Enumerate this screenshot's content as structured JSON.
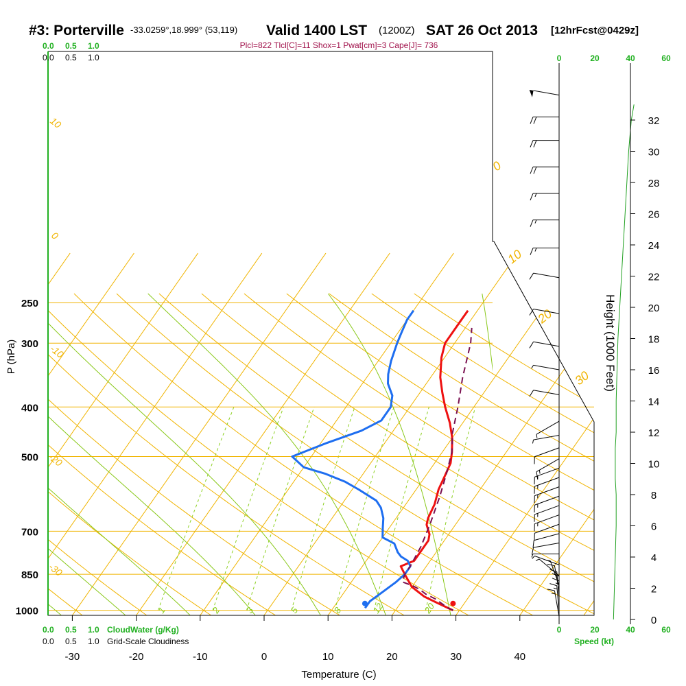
{
  "header": {
    "station": "#3: Porterville",
    "coords": "-33.0259°,18.999° (53,119)",
    "valid": "Valid 1400 LST",
    "utc": "(1200Z)",
    "date": "SAT 26 Oct 2013",
    "forecast": "[12hrFcst@0429z]",
    "indices": "Plcl=822 Tlcl[C]=11 Shox=1 Pwat[cm]=3 Cape[J]= 736"
  },
  "legend": {
    "cloudwater_label": "CloudWater (g/Kg)",
    "cloudiness_label": "Grid-Scale Cloudiness",
    "scale_values": [
      "0.0",
      "0.5",
      "1.0"
    ],
    "speed_label": "Speed (kt)",
    "speed_ticks": [
      "0",
      "20",
      "40",
      "60"
    ]
  },
  "colors": {
    "isotherm": "#f0b400",
    "dry_adiabat": "#88c818",
    "mixing_ratio": "#8cd020",
    "temperature": "#ee1111",
    "dewpoint": "#1e6ef0",
    "parcel": "#7a1050",
    "wind_speed": "#20a020",
    "indices_text": "#a0104a",
    "green_text": "#20b020"
  },
  "chart_data": {
    "type": "line",
    "title": "",
    "xlabel": "Temperature (C)",
    "ylabel": "P (hPa)",
    "y2label": "Height (1000 Feet)",
    "x_ticks": [
      -30,
      -20,
      -10,
      0,
      10,
      20,
      30,
      40
    ],
    "p_ticks": [
      250,
      300,
      400,
      500,
      700,
      850,
      1000
    ],
    "height_ticks": [
      0,
      2,
      4,
      6,
      8,
      10,
      12,
      14,
      16,
      18,
      20,
      22,
      24,
      26,
      28,
      30,
      32
    ],
    "mixing_ratio_labels": [
      "1",
      "2",
      "3",
      "5",
      "8",
      "12",
      "20"
    ],
    "isotherm_labels": [
      "10",
      "0",
      "-10",
      "-20",
      "-30"
    ],
    "dry_adiabat_labels": [
      "0",
      "10",
      "20",
      "30"
    ],
    "series": [
      {
        "key": "temperature",
        "points": [
          [
            29,
            1000
          ],
          [
            28,
            990
          ],
          [
            26,
            970
          ],
          [
            23,
            940
          ],
          [
            20,
            900
          ],
          [
            17.5,
            850
          ],
          [
            16,
            820
          ],
          [
            17.5,
            800
          ],
          [
            17.5,
            760
          ],
          [
            17.5,
            730
          ],
          [
            17,
            710
          ],
          [
            15.5,
            680
          ],
          [
            15,
            660
          ],
          [
            14.5,
            620
          ],
          [
            13.5,
            580
          ],
          [
            13,
            545
          ],
          [
            12.5,
            515
          ],
          [
            11.5,
            490
          ],
          [
            10,
            460
          ],
          [
            8,
            430
          ],
          [
            5.5,
            400
          ],
          [
            3.5,
            375
          ],
          [
            1.5,
            350
          ],
          [
            -0.5,
            320
          ],
          [
            -1.5,
            300
          ],
          [
            -1.5,
            285
          ],
          [
            -1.5,
            270
          ],
          [
            -1.5,
            259
          ]
        ]
      },
      {
        "key": "dewpoint",
        "points": [
          [
            15,
            990
          ],
          [
            15,
            960
          ],
          [
            16,
            920
          ],
          [
            17,
            880
          ],
          [
            17.5,
            850
          ],
          [
            17.5,
            820
          ],
          [
            16.5,
            800
          ],
          [
            15,
            785
          ],
          [
            14,
            770
          ],
          [
            12.5,
            740
          ],
          [
            10,
            720
          ],
          [
            9,
            690
          ],
          [
            8,
            660
          ],
          [
            6.5,
            630
          ],
          [
            5,
            610
          ],
          [
            1,
            580
          ],
          [
            -2,
            560
          ],
          [
            -6,
            540
          ],
          [
            -10,
            525
          ],
          [
            -13,
            500
          ],
          [
            -9,
            470
          ],
          [
            -5,
            445
          ],
          [
            -3,
            425
          ],
          [
            -3,
            400
          ],
          [
            -4,
            380
          ],
          [
            -6,
            360
          ],
          [
            -7,
            345
          ],
          [
            -8,
            325
          ],
          [
            -9,
            300
          ],
          [
            -9.5,
            285
          ],
          [
            -10,
            270
          ],
          [
            -10,
            259
          ]
        ]
      },
      {
        "key": "parcel",
        "points": [
          [
            29,
            1000
          ],
          [
            28,
            990
          ],
          [
            26.5,
            970
          ],
          [
            25,
            950
          ],
          [
            23,
            930
          ],
          [
            21.5,
            910
          ],
          [
            20,
            895
          ],
          [
            18,
            880
          ],
          [
            17.5,
            850
          ],
          [
            17.5,
            822
          ],
          [
            17,
            750
          ],
          [
            16,
            680
          ],
          [
            14.5,
            600
          ],
          [
            13,
            540
          ],
          [
            11.5,
            490
          ],
          [
            9.5,
            450
          ],
          [
            7.5,
            400
          ],
          [
            5,
            350
          ],
          [
            2.5,
            300
          ],
          [
            1,
            280
          ]
        ]
      }
    ],
    "surface_temperature": 29,
    "surface_dewpoint": 15,
    "height_curve": [
      [
        30.5,
        0
      ],
      [
        31,
        2
      ],
      [
        31.5,
        4
      ],
      [
        32,
        6
      ],
      [
        32,
        8
      ],
      [
        31.5,
        9
      ],
      [
        31.5,
        10
      ],
      [
        31.5,
        11
      ],
      [
        32,
        12
      ],
      [
        32,
        14
      ],
      [
        32.5,
        16
      ],
      [
        33,
        18
      ],
      [
        34,
        20
      ],
      [
        35,
        22
      ],
      [
        36,
        24
      ],
      [
        37,
        26
      ],
      [
        38,
        28
      ],
      [
        39,
        30
      ],
      [
        40.5,
        32
      ],
      [
        42,
        33
      ]
    ],
    "wind_barbs": [
      {
        "h": 0.2,
        "dir": 190,
        "spd": 15
      },
      {
        "h": 0.5,
        "dir": 185,
        "spd": 15
      },
      {
        "h": 0.8,
        "dir": 180,
        "spd": 15
      },
      {
        "h": 1.1,
        "dir": 180,
        "spd": 10
      },
      {
        "h": 1.4,
        "dir": 185,
        "spd": 10
      },
      {
        "h": 1.8,
        "dir": 190,
        "spd": 10
      },
      {
        "h": 2.2,
        "dir": 200,
        "spd": 5
      },
      {
        "h": 2.8,
        "dir": 230,
        "spd": 5
      },
      {
        "h": 3.5,
        "dir": 250,
        "spd": 5
      },
      {
        "h": 4.2,
        "dir": 270,
        "spd": 5
      },
      {
        "h": 4.9,
        "dir": 280,
        "spd": 10
      },
      {
        "h": 5.5,
        "dir": 285,
        "spd": 10
      },
      {
        "h": 6.1,
        "dir": 290,
        "spd": 10
      },
      {
        "h": 6.7,
        "dir": 290,
        "spd": 15
      },
      {
        "h": 7.3,
        "dir": 290,
        "spd": 15
      },
      {
        "h": 7.9,
        "dir": 290,
        "spd": 15
      },
      {
        "h": 8.5,
        "dir": 290,
        "spd": 15
      },
      {
        "h": 9.1,
        "dir": 290,
        "spd": 15
      },
      {
        "h": 9.7,
        "dir": 290,
        "spd": 15
      },
      {
        "h": 10.3,
        "dir": 300,
        "spd": 15
      },
      {
        "h": 11,
        "dir": 290,
        "spd": 10
      },
      {
        "h": 11.8,
        "dir": 280,
        "spd": 5
      },
      {
        "h": 12.7,
        "dir": 300,
        "spd": 5
      },
      {
        "h": 14.4,
        "dir": 260,
        "spd": 10
      },
      {
        "h": 16,
        "dir": 260,
        "spd": 5
      },
      {
        "h": 17.5,
        "dir": 260,
        "spd": 10
      },
      {
        "h": 19.6,
        "dir": 260,
        "spd": 10
      },
      {
        "h": 21.9,
        "dir": 260,
        "spd": 10
      },
      {
        "h": 23.8,
        "dir": 270,
        "spd": 15
      },
      {
        "h": 25.6,
        "dir": 270,
        "spd": 15
      },
      {
        "h": 27.3,
        "dir": 270,
        "spd": 15
      },
      {
        "h": 29,
        "dir": 270,
        "spd": 20
      },
      {
        "h": 30.7,
        "dir": 270,
        "spd": 20
      },
      {
        "h": 32.2,
        "dir": 270,
        "spd": 20
      },
      {
        "h": 33.6,
        "dir": 260,
        "spd": 50
      }
    ]
  }
}
